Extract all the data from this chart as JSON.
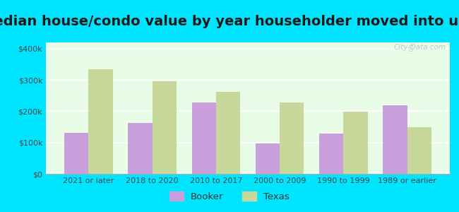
{
  "title": "Median house/condo value by year householder moved into unit",
  "categories": [
    "2021 or later",
    "2018 to 2020",
    "2010 to 2017",
    "2000 to 2009",
    "1990 to 1999",
    "1989 or earlier"
  ],
  "booker_values": [
    130000,
    163000,
    228000,
    97000,
    128000,
    218000
  ],
  "texas_values": [
    335000,
    295000,
    262000,
    228000,
    198000,
    150000
  ],
  "booker_color": "#c9a0dc",
  "texas_color": "#c8d89a",
  "background_color": "#e8fce8",
  "outer_background": "#00e5ff",
  "ylabel_ticks": [
    0,
    100000,
    200000,
    300000,
    400000
  ],
  "ylabel_labels": [
    "$0",
    "$100k",
    "$200k",
    "$300k",
    "$400k"
  ],
  "ylim": [
    0,
    420000
  ],
  "bar_width": 0.38,
  "legend_labels": [
    "Booker",
    "Texas"
  ],
  "watermark": "City-Data.com",
  "title_fontsize": 14,
  "tick_fontsize": 8
}
